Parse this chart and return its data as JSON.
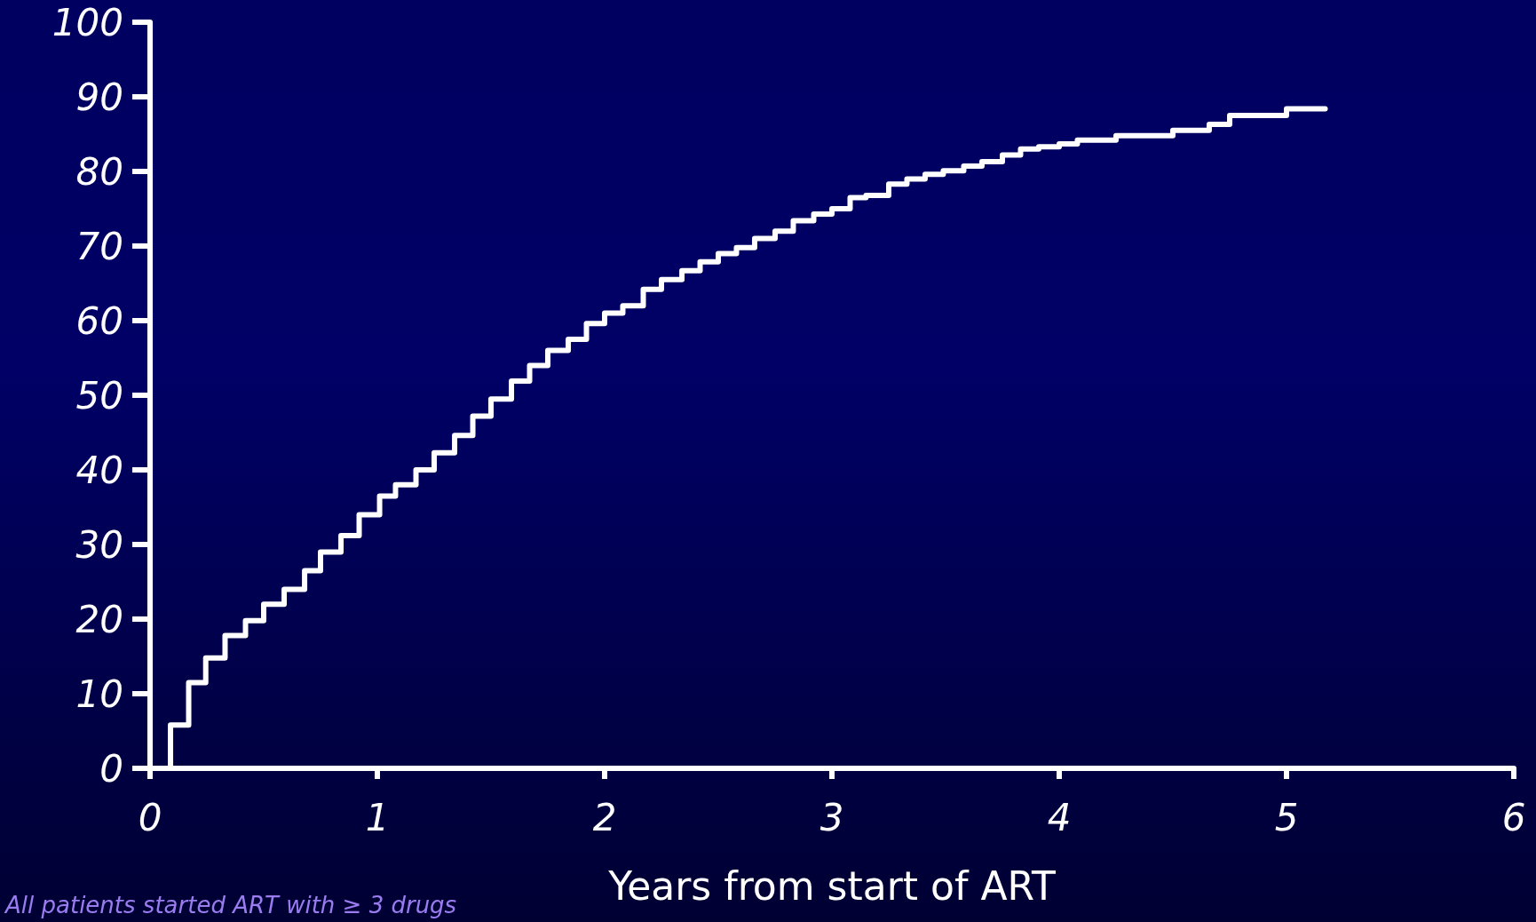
{
  "chart_data": {
    "type": "step",
    "xlabel": "Years from start of ART",
    "annotations": [
      "All patients started ART with ≥ 3 drugs"
    ],
    "x": [
      0,
      0.09,
      0.17,
      0.245,
      0.33,
      0.42,
      0.5,
      0.59,
      0.68,
      0.75,
      0.84,
      0.92,
      1.01,
      1.08,
      1.17,
      1.25,
      1.34,
      1.42,
      1.5,
      1.59,
      1.67,
      1.75,
      1.84,
      1.92,
      2.0,
      2.08,
      2.17,
      2.25,
      2.34,
      2.42,
      2.5,
      2.58,
      2.66,
      2.75,
      2.83,
      2.92,
      3.0,
      3.08,
      3.15,
      3.25,
      3.33,
      3.41,
      3.49,
      3.58,
      3.66,
      3.75,
      3.83,
      3.91,
      4.0,
      4.08,
      4.25,
      4.5,
      4.66,
      4.75,
      5.0,
      5.17
    ],
    "series": [
      {
        "color": "#ffffff",
        "values": [
          0,
          5.8,
          11.5,
          14.8,
          17.8,
          19.8,
          22,
          24,
          26.5,
          29,
          31.2,
          34,
          36.5,
          38,
          40,
          42.3,
          44.6,
          47.2,
          49.5,
          51.9,
          54,
          56,
          57.5,
          59.6,
          61,
          62,
          64.2,
          65.5,
          66.7,
          67.9,
          69,
          69.8,
          71,
          72,
          73.4,
          74.3,
          75,
          76.5,
          76.8,
          78.3,
          79,
          79.6,
          80.1,
          80.7,
          81.3,
          82.2,
          83,
          83.3,
          83.7,
          84.2,
          84.8,
          85.5,
          86.3,
          87.5,
          88.4,
          88.4
        ]
      }
    ],
    "xlim": [
      0,
      6
    ],
    "xticks": [
      0,
      1,
      2,
      3,
      4,
      5,
      6
    ],
    "ylim": [
      0,
      100
    ],
    "yticks": [
      0,
      10,
      20,
      30,
      40,
      50,
      60,
      70,
      80,
      90,
      100
    ],
    "grid": false,
    "marker": "none",
    "line_style": "solid"
  }
}
